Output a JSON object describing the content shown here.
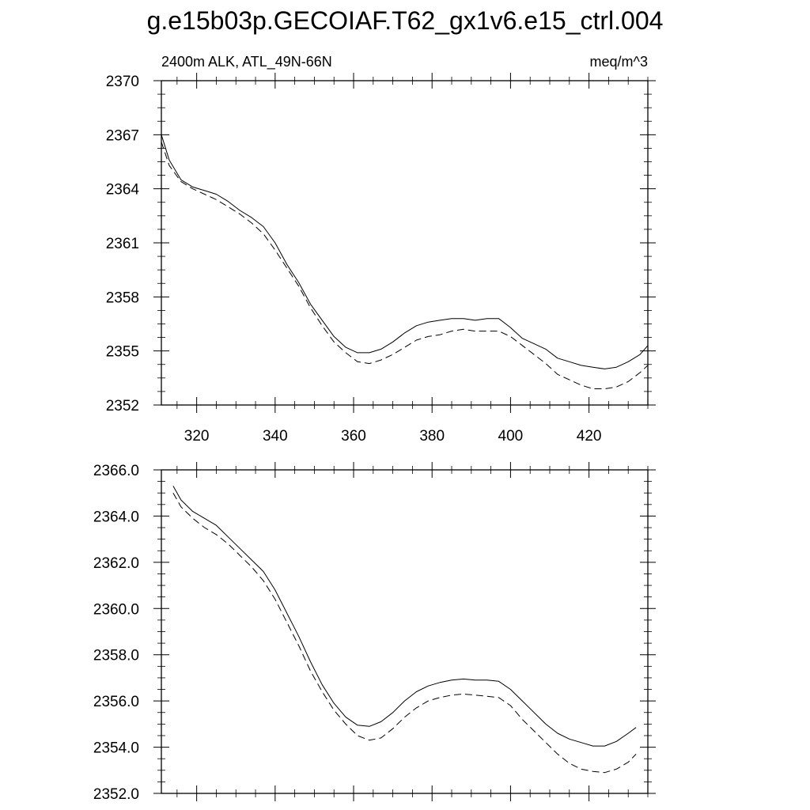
{
  "title": "g.e15b03p.GECOIAF.T62_gx1v6.e15_ctrl.004",
  "chart_data": [
    {
      "type": "line",
      "left_header": "2400m ALK, ATL_49N-66N",
      "right_header": "meq/m^3",
      "xlim": [
        311,
        435
      ],
      "ylim": [
        2352,
        2370
      ],
      "x_ticks": [
        320,
        340,
        360,
        380,
        400,
        420
      ],
      "x_tick_labels": [
        "320",
        "340",
        "360",
        "380",
        "400",
        "420"
      ],
      "y_ticks": [
        2352,
        2355,
        2358,
        2361,
        2364,
        2367,
        2370
      ],
      "y_tick_labels": [
        "2352",
        "2355",
        "2358",
        "2361",
        "2364",
        "2367",
        "2370"
      ],
      "grid": false,
      "series": [
        {
          "style": "solid",
          "x": [
            311,
            313,
            316,
            319,
            322,
            325,
            328,
            331,
            334,
            337,
            340,
            343,
            346,
            349,
            352,
            355,
            358,
            361,
            364,
            367,
            370,
            373,
            376,
            379,
            382,
            385,
            388,
            391,
            394,
            397,
            400,
            403,
            406,
            409,
            412,
            415,
            418,
            421,
            424,
            427,
            430,
            433,
            435
          ],
          "y": [
            2367.0,
            2365.6,
            2364.5,
            2364.1,
            2363.9,
            2363.7,
            2363.3,
            2362.8,
            2362.4,
            2361.9,
            2361.0,
            2359.8,
            2358.8,
            2357.6,
            2356.7,
            2355.8,
            2355.2,
            2354.9,
            2354.9,
            2355.1,
            2355.5,
            2356.0,
            2356.4,
            2356.6,
            2356.7,
            2356.8,
            2356.8,
            2356.7,
            2356.8,
            2356.8,
            2356.3,
            2355.7,
            2355.4,
            2355.1,
            2354.6,
            2354.4,
            2354.2,
            2354.1,
            2354.0,
            2354.1,
            2354.4,
            2354.8,
            2355.3
          ]
        },
        {
          "style": "dashed",
          "x": [
            311,
            313,
            316,
            319,
            322,
            325,
            328,
            331,
            334,
            337,
            340,
            343,
            346,
            349,
            352,
            355,
            358,
            361,
            364,
            367,
            370,
            373,
            376,
            379,
            382,
            385,
            388,
            391,
            394,
            397,
            400,
            403,
            406,
            409,
            412,
            415,
            418,
            421,
            424,
            427,
            430,
            433,
            435
          ],
          "y": [
            2366.6,
            2365.3,
            2364.4,
            2364.0,
            2363.7,
            2363.4,
            2363.0,
            2362.6,
            2362.1,
            2361.5,
            2360.6,
            2359.6,
            2358.6,
            2357.4,
            2356.4,
            2355.5,
            2354.9,
            2354.4,
            2354.3,
            2354.5,
            2354.8,
            2355.2,
            2355.6,
            2355.8,
            2355.9,
            2356.1,
            2356.2,
            2356.1,
            2356.1,
            2356.1,
            2355.8,
            2355.3,
            2354.8,
            2354.3,
            2353.7,
            2353.4,
            2353.1,
            2352.9,
            2352.9,
            2353.0,
            2353.3,
            2353.8,
            2354.2
          ]
        }
      ]
    },
    {
      "type": "line",
      "xlim": [
        311,
        435
      ],
      "ylim": [
        2352.0,
        2366.0
      ],
      "x_ticks": [
        320,
        340,
        360,
        380,
        400,
        420
      ],
      "y_ticks": [
        2352,
        2354,
        2356,
        2358,
        2360,
        2362,
        2364,
        2366
      ],
      "y_tick_labels": [
        "2352.0",
        "2354.0",
        "2356.0",
        "2358.0",
        "2360.0",
        "2362.0",
        "2364.0",
        "2366.0"
      ],
      "grid": false,
      "series": [
        {
          "style": "solid",
          "x": [
            314,
            316,
            319,
            322,
            325,
            328,
            331,
            334,
            337,
            340,
            343,
            346,
            349,
            352,
            355,
            358,
            361,
            364,
            367,
            370,
            373,
            376,
            379,
            382,
            385,
            388,
            391,
            394,
            397,
            400,
            403,
            406,
            409,
            412,
            415,
            418,
            421,
            424,
            427,
            430,
            432
          ],
          "y": [
            2365.3,
            2364.7,
            2364.2,
            2363.9,
            2363.6,
            2363.1,
            2362.6,
            2362.1,
            2361.6,
            2360.8,
            2359.8,
            2358.8,
            2357.7,
            2356.7,
            2355.9,
            2355.3,
            2354.95,
            2354.9,
            2355.1,
            2355.5,
            2356.0,
            2356.4,
            2356.65,
            2356.8,
            2356.9,
            2356.95,
            2356.9,
            2356.9,
            2356.85,
            2356.5,
            2356.0,
            2355.5,
            2355.0,
            2354.6,
            2354.35,
            2354.2,
            2354.05,
            2354.05,
            2354.25,
            2354.6,
            2354.85
          ]
        },
        {
          "style": "dashed",
          "x": [
            314,
            316,
            319,
            322,
            325,
            328,
            331,
            334,
            337,
            340,
            343,
            346,
            349,
            352,
            355,
            358,
            361,
            364,
            367,
            370,
            373,
            376,
            379,
            382,
            385,
            388,
            391,
            394,
            397,
            400,
            403,
            406,
            409,
            412,
            415,
            418,
            421,
            424,
            427,
            430,
            432
          ],
          "y": [
            2365.0,
            2364.4,
            2363.9,
            2363.5,
            2363.2,
            2362.8,
            2362.3,
            2361.8,
            2361.2,
            2360.4,
            2359.4,
            2358.4,
            2357.3,
            2356.4,
            2355.6,
            2355.0,
            2354.5,
            2354.3,
            2354.4,
            2354.8,
            2355.3,
            2355.7,
            2356.0,
            2356.15,
            2356.25,
            2356.3,
            2356.25,
            2356.2,
            2356.15,
            2355.8,
            2355.2,
            2354.7,
            2354.2,
            2353.7,
            2353.3,
            2353.05,
            2352.95,
            2352.9,
            2353.05,
            2353.35,
            2353.7
          ]
        }
      ]
    }
  ]
}
